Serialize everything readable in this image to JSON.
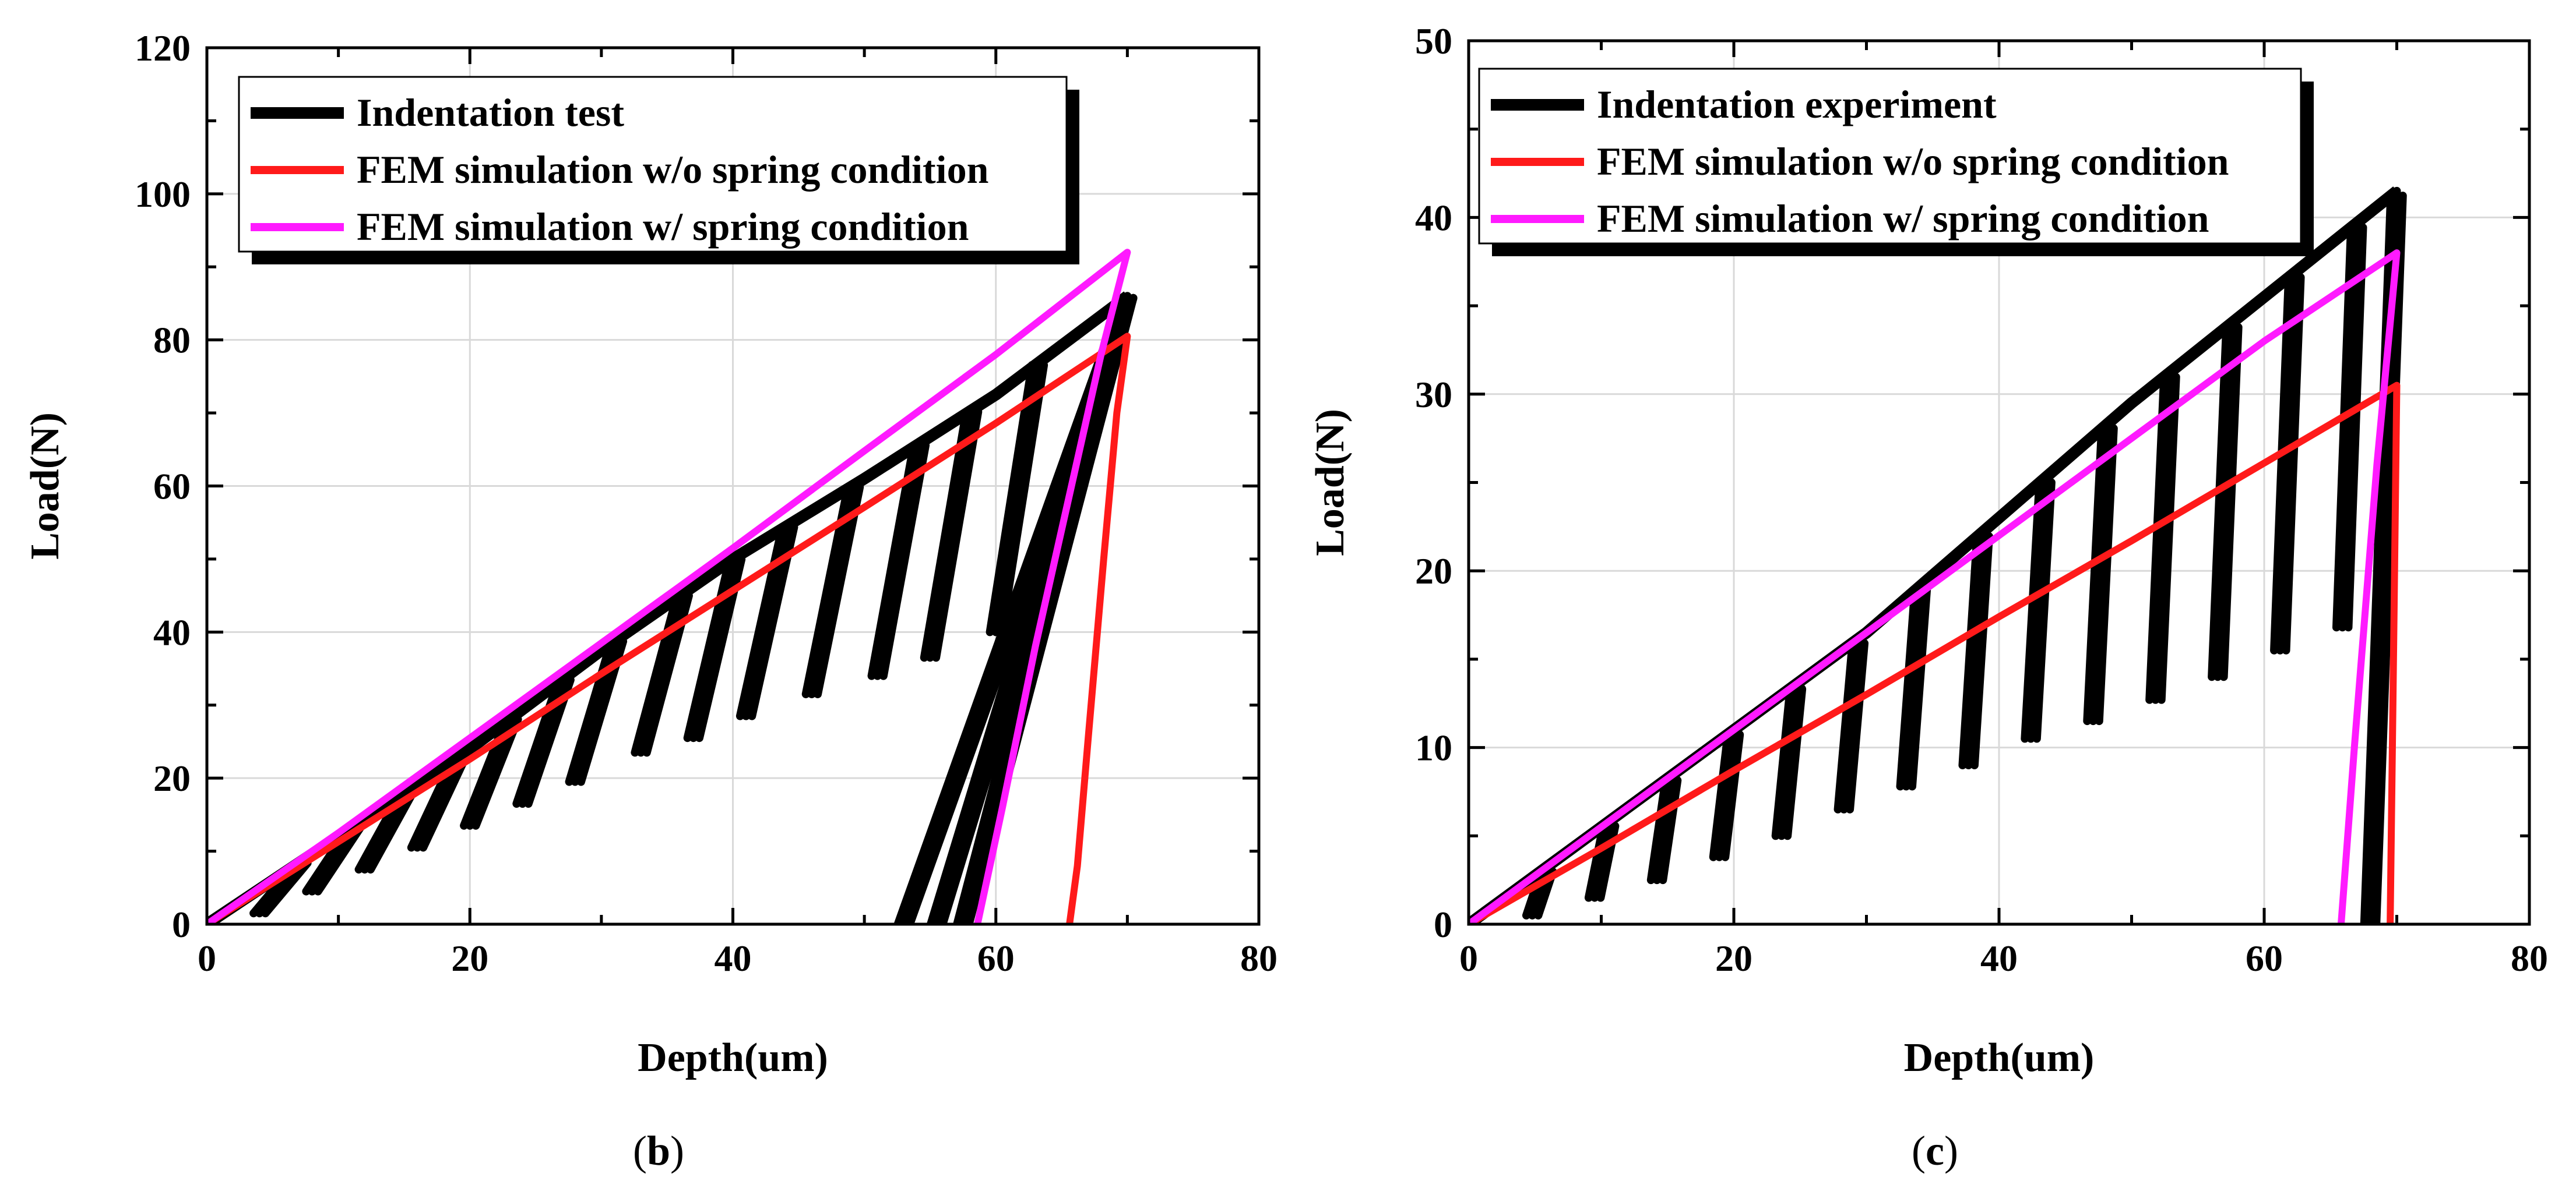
{
  "chart_data": [
    {
      "type": "line",
      "panel_label": "b",
      "xlabel": "Depth(um)",
      "ylabel": "Load(N)",
      "xlim": [
        0,
        80
      ],
      "ylim": [
        0,
        120
      ],
      "xticks": [
        0,
        20,
        40,
        60,
        80
      ],
      "yticks": [
        0,
        20,
        40,
        60,
        80,
        100,
        120
      ],
      "grid": true,
      "legend_position": "top-left",
      "colors": {
        "experiment": "#000000",
        "without_spring": "#ff1a1a",
        "with_spring": "#ff1aff"
      },
      "series": [
        {
          "name": "Indentation test",
          "style": "cyclic-experiment",
          "envelope": [
            [
              0,
              0
            ],
            [
              10,
              12
            ],
            [
              20,
              24
            ],
            [
              30,
              37.5
            ],
            [
              40,
              50
            ],
            [
              50,
              61
            ],
            [
              60,
              72.5
            ],
            [
              70,
              86
            ]
          ],
          "unload_points": [
            [
              4,
              1.5
            ],
            [
              8,
              4.5
            ],
            [
              12,
              7.5
            ],
            [
              16,
              10.5
            ],
            [
              20,
              13.5
            ],
            [
              24,
              16.5
            ],
            [
              28,
              19.5
            ],
            [
              33,
              23.5
            ],
            [
              37,
              25.5
            ],
            [
              41,
              28.5
            ],
            [
              46,
              31.5
            ],
            [
              51,
              34
            ],
            [
              55,
              36.5
            ],
            [
              60,
              40
            ],
            [
              53,
              0
            ],
            [
              55.5,
              0
            ],
            [
              57.5,
              0
            ]
          ]
        },
        {
          "name": "FEM simulation w/o spring condition",
          "style": "line",
          "x": [
            0,
            10,
            20,
            30,
            40,
            50,
            60,
            70,
            69.2,
            68.2,
            67,
            66.2,
            65.6
          ],
          "y": [
            0,
            11.3,
            22.6,
            34.3,
            45.7,
            57.1,
            68.6,
            80.5,
            70,
            50,
            25,
            8,
            0
          ]
        },
        {
          "name": "FEM simulation w/ spring condition",
          "style": "line",
          "x": [
            0,
            10,
            20,
            30,
            40,
            50,
            60,
            70,
            68,
            65.5,
            63,
            60.5,
            58.6
          ],
          "y": [
            0,
            12.5,
            25.5,
            38.5,
            51.5,
            64.8,
            78,
            92,
            78,
            58,
            38,
            16,
            0
          ]
        }
      ]
    },
    {
      "type": "line",
      "panel_label": "c",
      "xlabel": "Depth(um)",
      "ylabel": "Load(N)",
      "xlim": [
        0,
        80
      ],
      "ylim": [
        0,
        50
      ],
      "xticks": [
        0,
        20,
        40,
        60,
        80
      ],
      "yticks": [
        0,
        10,
        20,
        30,
        40,
        50
      ],
      "grid": true,
      "legend_position": "top-left",
      "colors": {
        "experiment": "#000000",
        "without_spring": "#ff1a1a",
        "with_spring": "#ff1aff"
      },
      "series": [
        {
          "name": "Indentation experiment",
          "style": "cyclic-experiment",
          "envelope": [
            [
              0,
              0
            ],
            [
              10,
              5.5
            ],
            [
              20,
              11
            ],
            [
              30,
              16.5
            ],
            [
              40,
              23
            ],
            [
              50,
              29.5
            ],
            [
              60,
              35.5
            ],
            [
              70,
              41.5
            ]
          ],
          "unload_points": [
            [
              4.8,
              0.5
            ],
            [
              9.5,
              1.5
            ],
            [
              14.2,
              2.5
            ],
            [
              18.9,
              3.8
            ],
            [
              23.6,
              5
            ],
            [
              28.3,
              6.5
            ],
            [
              33,
              7.8
            ],
            [
              37.7,
              9
            ],
            [
              42.4,
              10.5
            ],
            [
              47.1,
              11.5
            ],
            [
              51.8,
              12.7
            ],
            [
              56.5,
              14
            ],
            [
              61.2,
              15.5
            ],
            [
              65.9,
              16.8
            ],
            [
              68,
              0
            ]
          ]
        },
        {
          "name": "FEM simulation w/o spring condition",
          "style": "line",
          "x": [
            0,
            10,
            20,
            30,
            40,
            50,
            60,
            70,
            69.8,
            69.6,
            69.5
          ],
          "y": [
            0,
            4.3,
            8.7,
            13,
            17.4,
            21.7,
            26.1,
            30.5,
            18,
            6,
            0
          ]
        },
        {
          "name": "FEM simulation w/ spring condition",
          "style": "line",
          "x": [
            0,
            10,
            20,
            30,
            40,
            50,
            60,
            70,
            68.5,
            66.8,
            65.8
          ],
          "y": [
            0,
            5.5,
            11,
            16.5,
            22,
            27.5,
            33,
            38,
            26,
            10,
            0
          ]
        }
      ]
    }
  ]
}
